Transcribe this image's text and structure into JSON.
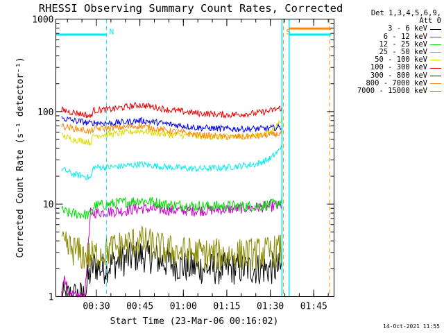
{
  "chart_data": {
    "type": "line",
    "title": "RHESSI Observing Summary Count Rates, Corrected",
    "xlabel": "Start Time (23-Mar-06 00:16:02)",
    "ylabel": "Corrected Count Rate (s⁻¹ detector⁻¹)",
    "yscale": "log",
    "ylim": [
      1,
      1000
    ],
    "xlim_minutes": [
      16.0,
      112.0
    ],
    "yticks": [
      {
        "value": 1,
        "label": "1"
      },
      {
        "value": 10,
        "label": "10"
      },
      {
        "value": 100,
        "label": "100"
      },
      {
        "value": 1000,
        "label": "1000"
      }
    ],
    "xticks": [
      {
        "minute": 30,
        "label": "00:30"
      },
      {
        "minute": 45,
        "label": "00:45"
      },
      {
        "minute": 60,
        "label": "01:00"
      },
      {
        "minute": 75,
        "label": "01:15"
      },
      {
        "minute": 90,
        "label": "01:30"
      },
      {
        "minute": 105,
        "label": "01:45"
      }
    ],
    "legend_header": [
      "Det 1,3,4,5,6,9,",
      "Att 0"
    ],
    "legend_placement": "right",
    "series": [
      {
        "name": "3 - 6 keV",
        "color": "#000000",
        "points": [
          [
            18,
            1
          ],
          [
            26,
            1
          ],
          [
            27,
            1.5
          ],
          [
            29,
            2.2
          ],
          [
            32,
            2
          ],
          [
            36,
            2.3
          ],
          [
            40,
            2.5
          ],
          [
            45,
            2.8
          ],
          [
            50,
            2.6
          ],
          [
            55,
            2.3
          ],
          [
            60,
            2.1
          ],
          [
            70,
            2
          ],
          [
            80,
            2
          ],
          [
            90,
            2
          ],
          [
            94,
            2
          ]
        ]
      },
      {
        "name": "6 - 12 keV",
        "color": "#cc00cc",
        "points": [
          [
            18,
            1
          ],
          [
            19,
            1.8
          ],
          [
            20,
            1.2
          ],
          [
            21,
            1
          ],
          [
            26,
            1
          ],
          [
            28,
            8
          ],
          [
            40,
            8.5
          ],
          [
            45,
            9
          ],
          [
            55,
            8.6
          ],
          [
            65,
            8.5
          ],
          [
            75,
            8.8
          ],
          [
            85,
            9.2
          ],
          [
            93,
            9.5
          ],
          [
            94,
            9.8
          ]
        ]
      },
      {
        "name": "12 - 25 keV",
        "color": "#00dd00",
        "points": [
          [
            18,
            8.5
          ],
          [
            20,
            8
          ],
          [
            25,
            7.8
          ],
          [
            28,
            7.6
          ],
          [
            29,
            9.5
          ],
          [
            35,
            10
          ],
          [
            40,
            10.5
          ],
          [
            45,
            11
          ],
          [
            50,
            10.5
          ],
          [
            55,
            9.8
          ],
          [
            65,
            9.5
          ],
          [
            75,
            9.5
          ],
          [
            85,
            9.5
          ],
          [
            92,
            10
          ],
          [
            94,
            11
          ]
        ]
      },
      {
        "name": "25 - 50 keV",
        "color": "#00eeee",
        "points": [
          [
            18,
            24
          ],
          [
            22,
            21
          ],
          [
            26,
            20
          ],
          [
            28,
            19
          ],
          [
            29,
            25
          ],
          [
            35,
            25
          ],
          [
            40,
            26
          ],
          [
            45,
            27
          ],
          [
            50,
            26
          ],
          [
            55,
            25
          ],
          [
            65,
            24
          ],
          [
            75,
            25
          ],
          [
            85,
            27
          ],
          [
            90,
            31
          ],
          [
            93,
            38
          ],
          [
            94,
            44
          ]
        ]
      },
      {
        "name": "50 - 100 keV",
        "color": "#dddd00",
        "points": [
          [
            18,
            55
          ],
          [
            22,
            50
          ],
          [
            26,
            48
          ],
          [
            28,
            46
          ],
          [
            29,
            55
          ],
          [
            35,
            57
          ],
          [
            40,
            59
          ],
          [
            45,
            62
          ],
          [
            50,
            59
          ],
          [
            55,
            56
          ],
          [
            65,
            54
          ],
          [
            75,
            53
          ],
          [
            85,
            55
          ],
          [
            90,
            60
          ],
          [
            93,
            75
          ],
          [
            94,
            88
          ]
        ]
      },
      {
        "name": "100 - 300 keV",
        "color": "#ee0000",
        "points": [
          [
            18,
            104
          ],
          [
            22,
            98
          ],
          [
            26,
            93
          ],
          [
            28,
            88
          ],
          [
            29,
            103
          ],
          [
            35,
            106
          ],
          [
            40,
            112
          ],
          [
            45,
            118
          ],
          [
            50,
            112
          ],
          [
            55,
            104
          ],
          [
            65,
            96
          ],
          [
            75,
            92
          ],
          [
            85,
            96
          ],
          [
            90,
            102
          ],
          [
            94,
            110
          ]
        ]
      },
      {
        "name": "300 - 800 keV",
        "color": "#0000ee",
        "points": [
          [
            18,
            85
          ],
          [
            22,
            80
          ],
          [
            26,
            77
          ],
          [
            28,
            74
          ],
          [
            29,
            76
          ],
          [
            35,
            75
          ],
          [
            40,
            77
          ],
          [
            45,
            80
          ],
          [
            50,
            77
          ],
          [
            55,
            73
          ],
          [
            65,
            67
          ],
          [
            75,
            65
          ],
          [
            85,
            65
          ],
          [
            90,
            66
          ],
          [
            94,
            68
          ]
        ]
      },
      {
        "name": "800 - 7000 keV",
        "color": "#ff8800",
        "points": [
          [
            18,
            70
          ],
          [
            22,
            66
          ],
          [
            26,
            63
          ],
          [
            28,
            60
          ],
          [
            29,
            65
          ],
          [
            35,
            66
          ],
          [
            40,
            68
          ],
          [
            45,
            70
          ],
          [
            50,
            66
          ],
          [
            55,
            62
          ],
          [
            65,
            56
          ],
          [
            75,
            53
          ],
          [
            85,
            54
          ],
          [
            90,
            56
          ],
          [
            94,
            58
          ]
        ]
      },
      {
        "name": "7000 - 15000 keV",
        "color": "#888800",
        "points": [
          [
            18,
            3.5
          ],
          [
            22,
            3.2
          ],
          [
            25,
            2.8
          ],
          [
            28,
            2.7
          ],
          [
            32,
            3
          ],
          [
            36,
            3.3
          ],
          [
            40,
            3.6
          ],
          [
            45,
            4
          ],
          [
            50,
            3.5
          ],
          [
            55,
            3.1
          ],
          [
            65,
            2.9
          ],
          [
            75,
            2.8
          ],
          [
            85,
            2.9
          ],
          [
            90,
            3
          ],
          [
            94,
            3.2
          ]
        ]
      }
    ],
    "annotations": [
      {
        "label": "N",
        "minute": 33.5,
        "color": "#00eeee"
      },
      {
        "label": "S",
        "minute": 94.5,
        "color": "#ff8800"
      }
    ],
    "level_markers": [
      {
        "color": "#00eeee",
        "value": 680,
        "from_minute": 16,
        "to_minute": 33.5
      },
      {
        "color": "#00eeee",
        "value": 680,
        "from_minute": 96.5,
        "to_minute": 111
      },
      {
        "color": "#ff8800",
        "value": 790,
        "from_minute": 96.5,
        "to_minute": 111
      }
    ]
  },
  "timestamp": "14-Oct-2021 11:55"
}
